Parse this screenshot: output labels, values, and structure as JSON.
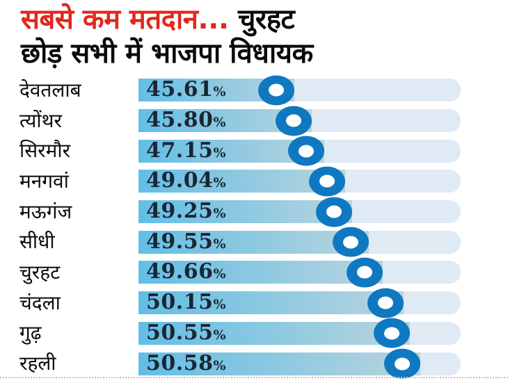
{
  "title": {
    "red_part": "सबसे कम मतदान...",
    "black_part": " चुरहट",
    "line2": "छोड़ सभी में भाजपा विधायक"
  },
  "chart_data": {
    "type": "bar",
    "title": "सबसे कम मतदान... चुरहट छोड़ सभी में भाजपा विधायक",
    "orientation": "horizontal",
    "unit": "%",
    "categories": [
      "देवतलाब",
      "त्योंथर",
      "सिरमौर",
      "मनगवां",
      "मऊगंज",
      "सीधी",
      "चुरहट",
      "चंदला",
      "गुढ़",
      "रहली"
    ],
    "values": [
      45.61,
      45.8,
      47.15,
      49.04,
      49.25,
      49.55,
      49.66,
      50.15,
      50.55,
      50.58
    ],
    "value_labels": [
      "45.61",
      "45.80",
      "47.15",
      "49.04",
      "49.25",
      "49.55",
      "49.66",
      "50.15",
      "50.55",
      "50.58"
    ],
    "marker_positions_pct": [
      42.8,
      48.2,
      52.1,
      58.5,
      60.7,
      65.9,
      70.2,
      76.7,
      78.6,
      81.9
    ],
    "grid": false,
    "legend": false,
    "colors": {
      "headline_red": "#e3261d",
      "headline_black": "#0a0a0a",
      "bar_fill_start": "#62bee6",
      "bar_fill_end": "#b9d4dd",
      "bar_track": "#dfeaf4",
      "marker_blue": "#0f78c0",
      "value_text": "#1a2633"
    }
  }
}
